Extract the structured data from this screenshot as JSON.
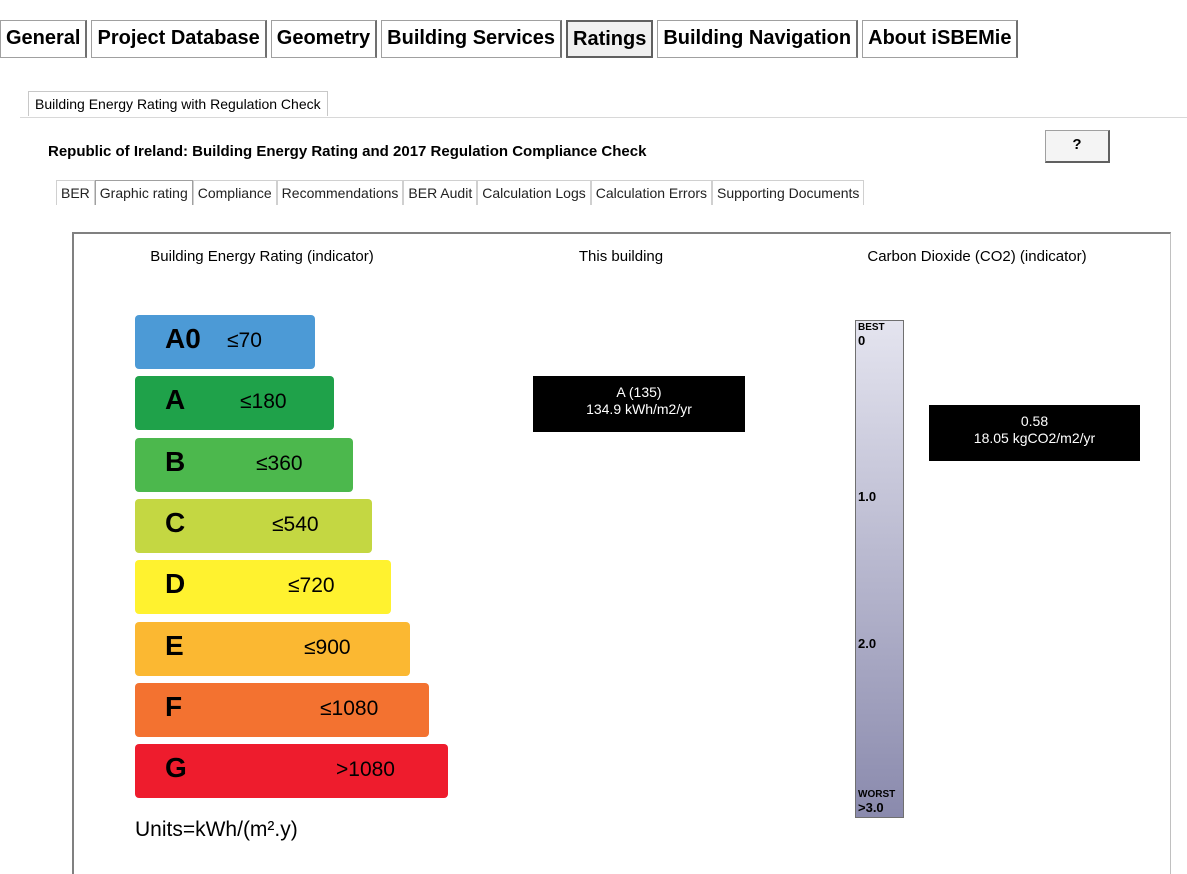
{
  "main_tabs": [
    "General",
    "Project Database",
    "Geometry",
    "Building Services",
    "Ratings",
    "Building Navigation",
    "About iSBEMie"
  ],
  "sub_tab": "Building Energy Rating with Regulation Check",
  "title": "Republic of Ireland: Building Energy Rating and 2017 Regulation Compliance Check",
  "help_button": "?",
  "inner_tabs": [
    "BER",
    "Graphic rating",
    "Compliance",
    "Recommendations",
    "BER Audit",
    "Calculation Logs",
    "Calculation Errors",
    "Supporting Documents"
  ],
  "panel": {
    "headers": [
      "Building Energy Rating (indicator)",
      "This building",
      "Carbon Dioxide (CO2) (indicator)"
    ],
    "ratings": [
      {
        "letter": "A0",
        "limit": "≤70"
      },
      {
        "letter": "A",
        "limit": "≤180"
      },
      {
        "letter": "B",
        "limit": "≤360"
      },
      {
        "letter": "C",
        "limit": "≤540"
      },
      {
        "letter": "D",
        "limit": "≤720"
      },
      {
        "letter": "E",
        "limit": "≤900"
      },
      {
        "letter": "F",
        "limit": "≤1080"
      },
      {
        "letter": "G",
        "limit": ">1080"
      }
    ],
    "units": "Units=kWh/(m².y)",
    "building_result": [
      "A (135)",
      "134.9 kWh/m2/yr"
    ],
    "co2_scale": {
      "best": "BEST",
      "top": "0",
      "mid1": "1.0",
      "mid2": "2.0",
      "worst": "WORST",
      "bottom": ">3.0"
    },
    "co2_result": [
      "0.58",
      "18.05 kgCO2/m2/yr"
    ]
  }
}
